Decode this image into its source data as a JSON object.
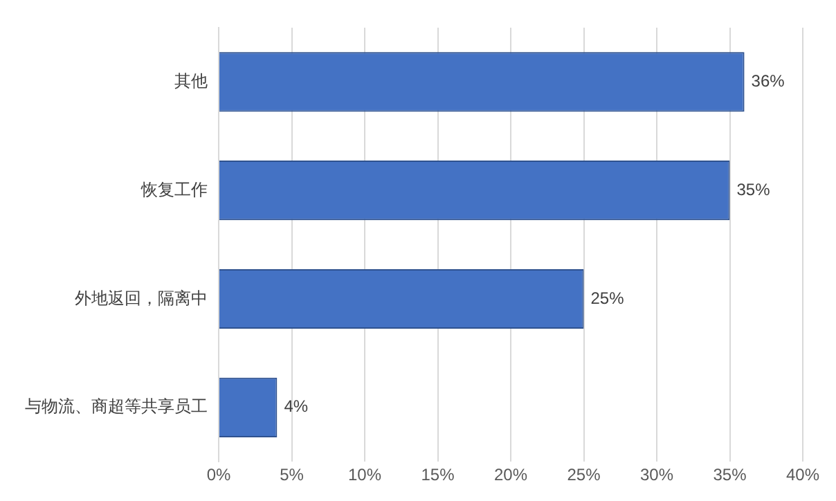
{
  "chart_data": {
    "type": "bar",
    "orientation": "horizontal",
    "categories": [
      "其他",
      "恢复工作",
      "外地返回，隔离中",
      "与物流、商超等共享员工"
    ],
    "values": [
      36,
      35,
      25,
      4
    ],
    "value_labels": [
      "36%",
      "35%",
      "25%",
      "4%"
    ],
    "color": "#4472c4",
    "xlim": [
      0,
      40
    ],
    "xticks": [
      {
        "value": 0,
        "label": "0%"
      },
      {
        "value": 5,
        "label": "5%"
      },
      {
        "value": 10,
        "label": "10%"
      },
      {
        "value": 15,
        "label": "15%"
      },
      {
        "value": 20,
        "label": "20%"
      },
      {
        "value": 25,
        "label": "25%"
      },
      {
        "value": 30,
        "label": "30%"
      },
      {
        "value": 35,
        "label": "35%"
      },
      {
        "value": 40,
        "label": "40%"
      }
    ],
    "grid": "x",
    "legend": false
  }
}
